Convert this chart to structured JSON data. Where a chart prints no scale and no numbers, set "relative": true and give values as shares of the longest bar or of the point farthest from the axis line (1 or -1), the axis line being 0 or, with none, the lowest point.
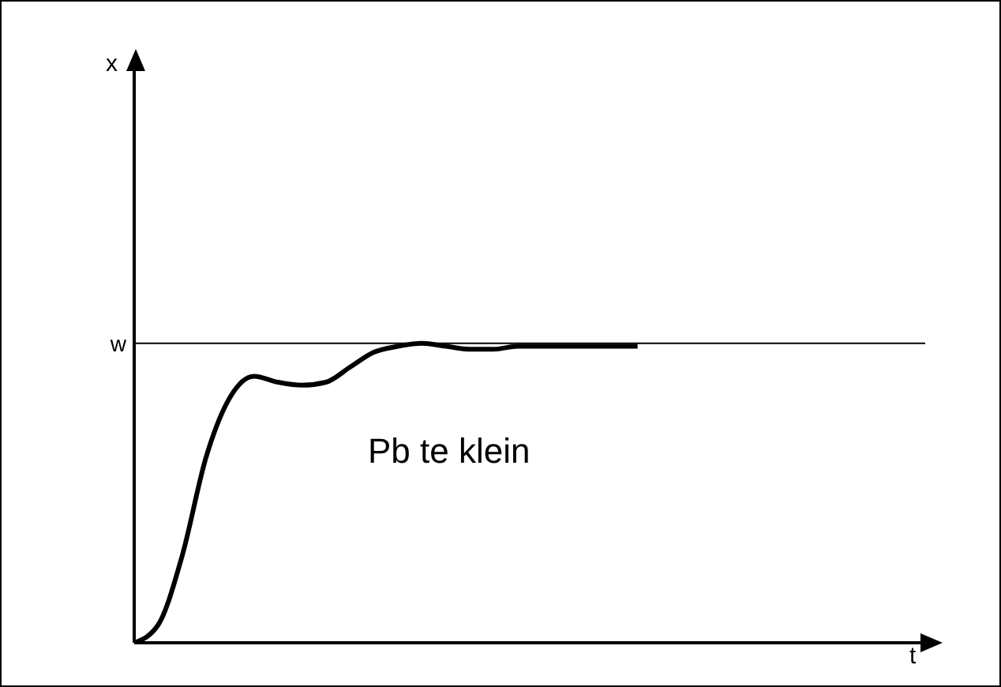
{
  "chart_data": {
    "type": "line",
    "relative": true,
    "xlabel": "t",
    "annotations": [
      "x",
      "Pb te klein"
    ],
    "categories": [
      null,
      null,
      null,
      null,
      null,
      null,
      null,
      null,
      null,
      null,
      null,
      null,
      null,
      null,
      null,
      null,
      null,
      null,
      null,
      null,
      null,
      null,
      null,
      null,
      null,
      null,
      null,
      null,
      null,
      null,
      null,
      null,
      null,
      null
    ],
    "series": [
      {
        "color": "#000000",
        "values": [
          0,
          0.06,
          0.29,
          0.62,
          0.82,
          0.89,
          0.87,
          0.86,
          0.87,
          0.92,
          0.97,
          0.99,
          1,
          0.99,
          0.98,
          0.98,
          0.99,
          0.99,
          0.99,
          0.99,
          0.99,
          0.99,
          null,
          null,
          null,
          null,
          null,
          null,
          null,
          null,
          null,
          null,
          null,
          null
        ]
      }
    ],
    "ref_lines": [
      {
        "axis": "y",
        "value": 1,
        "label": "w",
        "color": "#000000"
      }
    ],
    "marker": "none",
    "line_style": "solid"
  }
}
